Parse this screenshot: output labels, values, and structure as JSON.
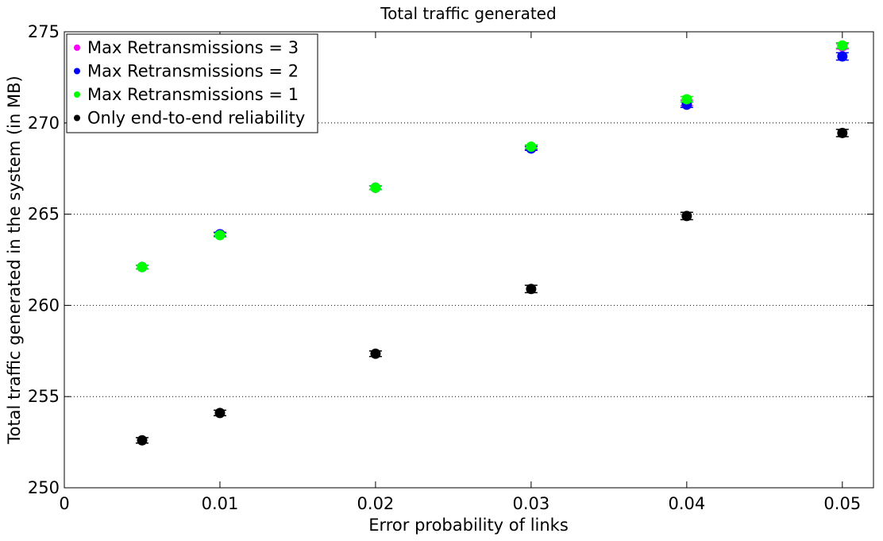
{
  "chart_data": {
    "type": "scatter",
    "title": "Total traffic generated",
    "xlabel": "Error probability of links",
    "ylabel": "Total traffic generated in the system (in MB)",
    "xlim": [
      0,
      0.052
    ],
    "ylim": [
      250,
      275
    ],
    "x_ticks": [
      0,
      0.01,
      0.02,
      0.03,
      0.04,
      0.05
    ],
    "x_tick_labels": [
      "0",
      "0.01",
      "0.02",
      "0.03",
      "0.04",
      "0.05"
    ],
    "y_ticks": [
      250,
      255,
      260,
      265,
      270,
      275
    ],
    "y_tick_labels": [
      "250",
      "255",
      "260",
      "265",
      "270",
      "275"
    ],
    "grid": "horizontal dotted",
    "legend_position": "top-left",
    "error_bars": true,
    "x": [
      0.005,
      0.01,
      0.02,
      0.03,
      0.04,
      0.05
    ],
    "series": [
      {
        "name": "Max Retransmissions = 3",
        "color": "#ff00ff",
        "values": [
          262.1,
          263.9,
          266.45,
          268.65,
          271.1,
          274.2
        ],
        "errors": [
          0.1,
          0.1,
          0.1,
          0.1,
          0.15,
          0.15
        ]
      },
      {
        "name": "Max Retransmissions = 2",
        "color": "#0000ff",
        "values": [
          262.1,
          263.9,
          266.45,
          268.6,
          271.0,
          273.65
        ],
        "errors": [
          0.1,
          0.1,
          0.1,
          0.1,
          0.15,
          0.2
        ]
      },
      {
        "name": "Max Retransmissions = 1",
        "color": "#00ff00",
        "values": [
          262.1,
          263.85,
          266.45,
          268.7,
          271.3,
          274.25
        ],
        "errors": [
          0.1,
          0.1,
          0.1,
          0.1,
          0.15,
          0.15
        ]
      },
      {
        "name": "Only end-to-end reliability",
        "color": "#000000",
        "values": [
          252.6,
          254.1,
          257.35,
          260.9,
          264.9,
          269.45
        ],
        "errors": [
          0.15,
          0.15,
          0.15,
          0.2,
          0.2,
          0.2
        ]
      }
    ]
  }
}
